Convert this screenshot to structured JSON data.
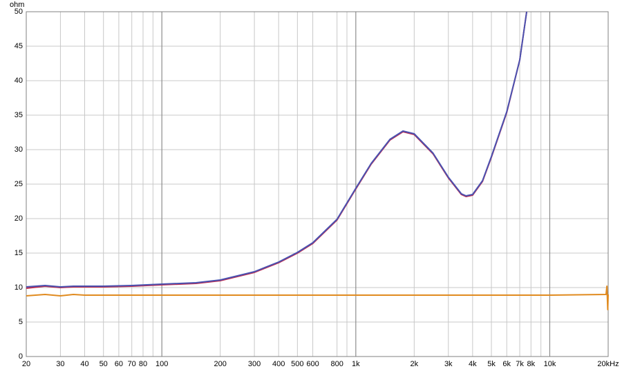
{
  "chart_data": {
    "type": "line",
    "y_label": "ohm",
    "log_x": true,
    "grid": true,
    "xlim": [
      20,
      20000
    ],
    "ylim": [
      0,
      50
    ],
    "yticks": [
      0,
      5,
      10,
      15,
      20,
      25,
      30,
      35,
      40,
      45,
      50
    ],
    "xticks": [
      20,
      30,
      40,
      50,
      60,
      70,
      80,
      100,
      200,
      300,
      400,
      500,
      600,
      800,
      {
        "value": 1000,
        "label": "1k"
      },
      {
        "value": 2000,
        "label": "2k"
      },
      {
        "value": 3000,
        "label": "3k"
      },
      {
        "value": 4000,
        "label": "4k"
      },
      {
        "value": 5000,
        "label": "5k"
      },
      {
        "value": 6000,
        "label": "6k"
      },
      {
        "value": 7000,
        "label": "7k"
      },
      {
        "value": 8000,
        "label": "8k"
      },
      {
        "value": 10000,
        "label": "10k"
      },
      {
        "value": 20000,
        "label": "20kHz"
      }
    ],
    "xgrid_minor": [
      90,
      900,
      9000
    ],
    "xgrid_major": [
      100,
      1000,
      10000
    ],
    "series": [
      {
        "color": "#c0284a",
        "x": [
          20,
          25,
          30,
          35,
          40,
          50,
          70,
          100,
          150,
          200,
          300,
          400,
          500,
          600,
          800,
          1000,
          1200,
          1500,
          1750,
          2000,
          2500,
          3000,
          3500,
          3700,
          4000,
          4500,
          5000,
          6000,
          7000,
          7600
        ],
        "values": [
          9.9,
          10.2,
          10.0,
          10.1,
          10.1,
          10.1,
          10.2,
          10.4,
          10.6,
          11.0,
          12.2,
          13.6,
          15.0,
          16.4,
          19.8,
          24.3,
          27.9,
          31.4,
          32.6,
          32.2,
          29.4,
          25.9,
          23.5,
          23.2,
          23.4,
          25.4,
          28.9,
          35.4,
          43.0,
          50
        ]
      },
      {
        "color": "#4a52b0",
        "x": [
          20,
          25,
          30,
          35,
          40,
          50,
          70,
          100,
          150,
          200,
          300,
          400,
          500,
          600,
          800,
          1000,
          1200,
          1500,
          1750,
          2000,
          2500,
          3000,
          3500,
          3700,
          4000,
          4500,
          5000,
          6000,
          7000,
          7600
        ],
        "values": [
          10.1,
          10.3,
          10.1,
          10.2,
          10.2,
          10.2,
          10.3,
          10.5,
          10.7,
          11.1,
          12.3,
          13.7,
          15.1,
          16.5,
          19.9,
          24.4,
          28.0,
          31.5,
          32.7,
          32.3,
          29.5,
          26.0,
          23.6,
          23.3,
          23.5,
          25.5,
          29.0,
          35.5,
          43.0,
          50
        ]
      },
      {
        "color": "#e08a1e",
        "x": [
          20,
          25,
          30,
          35,
          40,
          100,
          1000,
          10000,
          19500,
          19700,
          19900,
          20000
        ],
        "values": [
          8.8,
          9.0,
          8.8,
          9.0,
          8.9,
          8.9,
          8.9,
          8.9,
          9.0,
          10.2,
          6.8,
          9.0
        ]
      }
    ]
  }
}
